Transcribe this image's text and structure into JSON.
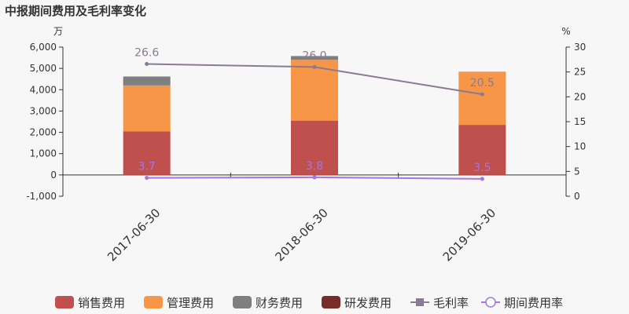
{
  "chart_data": {
    "type": "bar",
    "title": "中报期间费用及毛利率变化",
    "left_unit": "万",
    "right_unit": "%",
    "categories": [
      "2017-06-30",
      "2018-06-30",
      "2019-06-30"
    ],
    "left_ylim": [
      -1000,
      6000
    ],
    "left_ticks": [
      "-1,000",
      "0",
      "1,000",
      "2,000",
      "3,000",
      "4,000",
      "5,000",
      "6,000"
    ],
    "right_ylim": [
      0,
      30
    ],
    "right_ticks": [
      "0",
      "5",
      "10",
      "15",
      "20",
      "25",
      "30"
    ],
    "bar_series": [
      {
        "name": "销售费用",
        "color": "#c0504d",
        "values": [
          2050,
          2550,
          2350
        ]
      },
      {
        "name": "管理费用",
        "color": "#f79646",
        "values": [
          2150,
          2850,
          2500
        ]
      },
      {
        "name": "财务费用",
        "color": "#7f7f7f",
        "values": [
          420,
          180,
          0
        ]
      },
      {
        "name": "研发费用",
        "color": "#772c2a",
        "values": [
          0,
          0,
          0
        ]
      }
    ],
    "line_series": [
      {
        "name": "毛利率",
        "color": "#8b7a92",
        "values": [
          26.6,
          26.0,
          20.5
        ],
        "labels": [
          "26.6",
          "26.0",
          "20.5"
        ]
      },
      {
        "name": "期间费用率",
        "color": "#a575e0",
        "values": [
          3.7,
          3.8,
          3.5
        ],
        "labels": [
          "3.7",
          "3.8",
          "3.5"
        ]
      }
    ],
    "legend_position": "bottom"
  }
}
